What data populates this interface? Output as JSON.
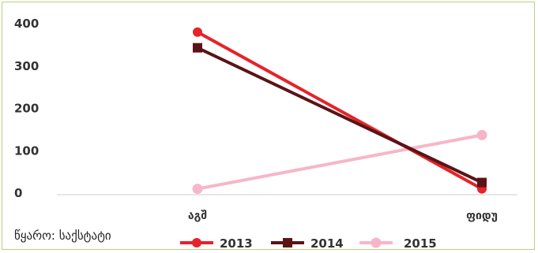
{
  "chart_data": {
    "type": "line",
    "categories": [
      "აგშ",
      "ფიდუ"
    ],
    "series": [
      {
        "name": "2013",
        "values": [
          380,
          10
        ],
        "color": "#e5232a"
      },
      {
        "name": "2014",
        "values": [
          343,
          25
        ],
        "color": "#5a1416"
      },
      {
        "name": "2015",
        "values": [
          10,
          137
        ],
        "color": "#f7b6c8"
      }
    ],
    "yticks": [
      0,
      100,
      200,
      300,
      400
    ],
    "ylim": [
      0,
      400
    ],
    "legend_position": "bottom",
    "grid": false
  },
  "source": "წყარო: საქსტატი",
  "colors": {
    "frame": "#b8d07e",
    "axis": "#cccccc",
    "text": "#333333"
  }
}
